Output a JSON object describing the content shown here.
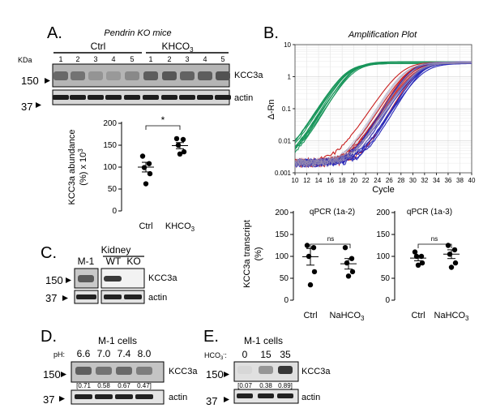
{
  "panel_a": {
    "letter": "A.",
    "title": "Pendrin KO mice",
    "group_ctrl": "Ctrl",
    "group_khco3": "KHCO",
    "group_khco3_sub": "3",
    "kda_label": "KDa",
    "lanes": [
      "1",
      "2",
      "3",
      "4",
      "5",
      "1",
      "2",
      "3",
      "4",
      "5"
    ],
    "mw_150": "150",
    "mw_37": "37",
    "blot_kcc3a": "KCC3a",
    "blot_actin": "actin"
  },
  "panel_a_plot": {
    "ylabel_line1": "KCC3a abundance",
    "ylabel_line2": "(%) x 10",
    "ylabel_sup": "3",
    "yticks": [
      "0",
      "50",
      "100",
      "150",
      "200"
    ],
    "xcat_ctrl": "Ctrl",
    "xcat_khco3": "KHCO",
    "xcat_khco3_sub": "3",
    "sig": "*"
  },
  "panel_b": {
    "letter": "B.",
    "title": "Amplification Plot",
    "ylabel": "Δ-Rn",
    "xlabel": "Cycle",
    "yticks": [
      "10",
      "1",
      "0.1",
      "0.01",
      "0.001"
    ],
    "xticks": [
      "10",
      "12",
      "14",
      "16",
      "18",
      "20",
      "22",
      "24",
      "26",
      "28",
      "30",
      "32",
      "34",
      "36",
      "38",
      "40"
    ]
  },
  "panel_b_qpcr1": {
    "title": "qPCR (1a-2)",
    "ylabel_line1": "KCC3a transcript",
    "ylabel_line2": "(%)",
    "yticks": [
      "200",
      "150",
      "100",
      "50",
      "0"
    ],
    "xcat_ctrl": "Ctrl",
    "xcat_na": "NaHCO",
    "xcat_na_sub": "3",
    "sig": "ns"
  },
  "panel_b_qpcr2": {
    "title": "qPCR (1a-3)",
    "yticks": [
      "200",
      "150",
      "100",
      "50",
      "0"
    ],
    "xcat_ctrl": "Ctrl",
    "xcat_na": "NaHCO",
    "xcat_na_sub": "3",
    "sig": "ns"
  },
  "panel_c": {
    "letter": "C.",
    "m1": "M-1",
    "kidney": "Kidney",
    "wt": "WT",
    "ko": "KO",
    "mw_150": "150",
    "mw_37": "37",
    "blot_kcc3a": "KCC3a",
    "blot_actin": "actin"
  },
  "panel_d": {
    "letter": "D.",
    "title": "M-1 cells",
    "ph_label": "pH:",
    "ph_values": [
      "6.6",
      "7.0",
      "7.4",
      "8.0"
    ],
    "ratios": [
      "[0.71",
      "0.58",
      "0.67",
      "0.47]"
    ],
    "mw_150": "150",
    "mw_37": "37",
    "blot_kcc3a": "KCC3a",
    "blot_actin": "actin"
  },
  "panel_e": {
    "letter": "E.",
    "title": "M-1 cells",
    "hco3_label": "HCO",
    "hco3_sub": "3",
    "hco3_sup": "-",
    "hco3_colon": ":",
    "conc": [
      "0",
      "15",
      "35"
    ],
    "ratios": [
      "[0.07",
      "0.38",
      "0.89]"
    ],
    "mw_150": "150",
    "mw_37": "37",
    "blot_kcc3a": "KCC3a",
    "blot_actin": "actin"
  },
  "chart_data": [
    {
      "type": "scatter",
      "panel": "A",
      "ylabel": "KCC3a abundance (%) x 10^3",
      "categories": [
        "Ctrl",
        "KHCO3"
      ],
      "ylim": [
        0,
        200
      ],
      "points": {
        "Ctrl": [
          125,
          108,
          99,
          85,
          62
        ],
        "KHCO3": [
          165,
          163,
          150,
          135,
          130
        ]
      },
      "mean": [
        100,
        149
      ],
      "sem": [
        11,
        7
      ],
      "significance": "*"
    },
    {
      "type": "line",
      "panel": "B",
      "title": "Amplification Plot",
      "xlabel": "Cycle",
      "ylabel": "Δ-Rn",
      "yscale": "log",
      "xlim": [
        10,
        40
      ],
      "ylim": [
        0.001,
        10
      ],
      "series": [
        {
          "color": "#18955a",
          "midpoint_cycle": 19.5,
          "plateau": 2.8
        },
        {
          "color": "#c81e1e",
          "midpoint_cycle": 29.5,
          "plateau": 2.8
        },
        {
          "color": "#2a2ab8",
          "midpoint_cycle": 30.5,
          "plateau": 2.8
        },
        {
          "color": "#9a8fb0",
          "midpoint_cycle": 30.0,
          "plateau": 2.8
        }
      ]
    },
    {
      "type": "scatter",
      "panel": "B-qPCR(1a-2)",
      "ylabel": "KCC3a transcript (%)",
      "categories": [
        "Ctrl",
        "NaHCO3"
      ],
      "ylim": [
        0,
        200
      ],
      "points": {
        "Ctrl": [
          125,
          120,
          100,
          65,
          35
        ],
        "NaHCO3": [
          120,
          95,
          85,
          65,
          55
        ]
      },
      "mean": [
        99,
        83
      ],
      "sem": [
        19,
        12
      ],
      "significance": "ns"
    },
    {
      "type": "scatter",
      "panel": "B-qPCR(1a-3)",
      "categories": [
        "Ctrl",
        "NaHCO3"
      ],
      "ylim": [
        0,
        200
      ],
      "points": {
        "Ctrl": [
          110,
          100,
          100,
          85,
          80
        ],
        "NaHCO3": [
          125,
          115,
          105,
          85,
          75
        ]
      },
      "mean": [
        96,
        105
      ],
      "sem": [
        6,
        10
      ],
      "significance": "ns"
    }
  ]
}
